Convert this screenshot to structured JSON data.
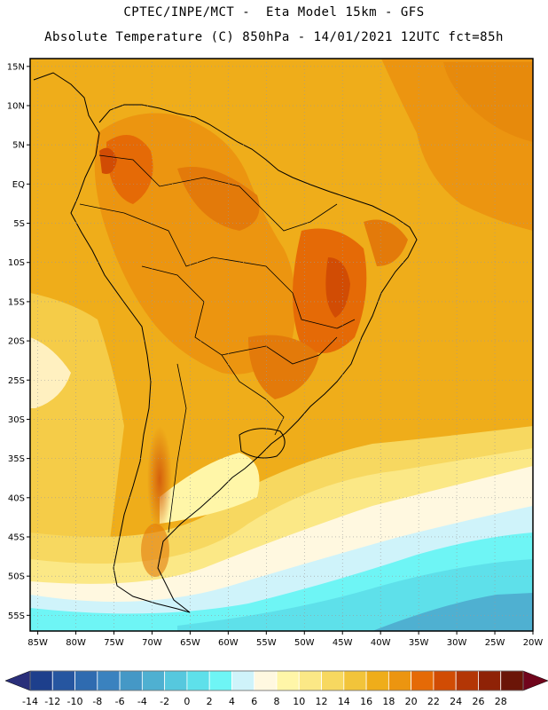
{
  "header": {
    "line1": "CPTEC/INPE/MCT -  Eta Model 15km - GFS",
    "line2": "Absolute Temperature (C) 850hPa - 14/01/2021 12UTC fct=85h"
  },
  "map": {
    "lat_labels": [
      "15N",
      "10N",
      "5N",
      "EQ",
      "5S",
      "10S",
      "15S",
      "20S",
      "25S",
      "30S",
      "35S",
      "40S",
      "45S",
      "50S",
      "55S"
    ],
    "lon_labels": [
      "85W",
      "80W",
      "75W",
      "70W",
      "65W",
      "60W",
      "55W",
      "50W",
      "45W",
      "40W",
      "35W",
      "30W",
      "25W",
      "20W"
    ],
    "lat_range": [
      16,
      -57
    ],
    "lon_range": [
      -86,
      -20
    ]
  },
  "colorbar": {
    "labels": [
      "-14",
      "-12",
      "-10",
      "-8",
      "-6",
      "-4",
      "-2",
      "0",
      "2",
      "4",
      "6",
      "8",
      "10",
      "12",
      "14",
      "16",
      "18",
      "20",
      "22",
      "24",
      "26",
      "28"
    ],
    "colors": [
      "#1d3f8c",
      "#2656a0",
      "#2f6bb0",
      "#3a82bf",
      "#4598c6",
      "#4fb0d1",
      "#56c8de",
      "#5ee0ea",
      "#6ef5f5",
      "#cff3fa",
      "#fff8e0",
      "#fff6a8",
      "#fbe886",
      "#f7d860",
      "#f2c43a",
      "#efad1a",
      "#ec9510",
      "#e56a06",
      "#d14c04",
      "#b33605",
      "#8f2206",
      "#6b1508"
    ],
    "left_arrow_color": "#2a2f7a",
    "right_arrow_color": "#70051c"
  }
}
